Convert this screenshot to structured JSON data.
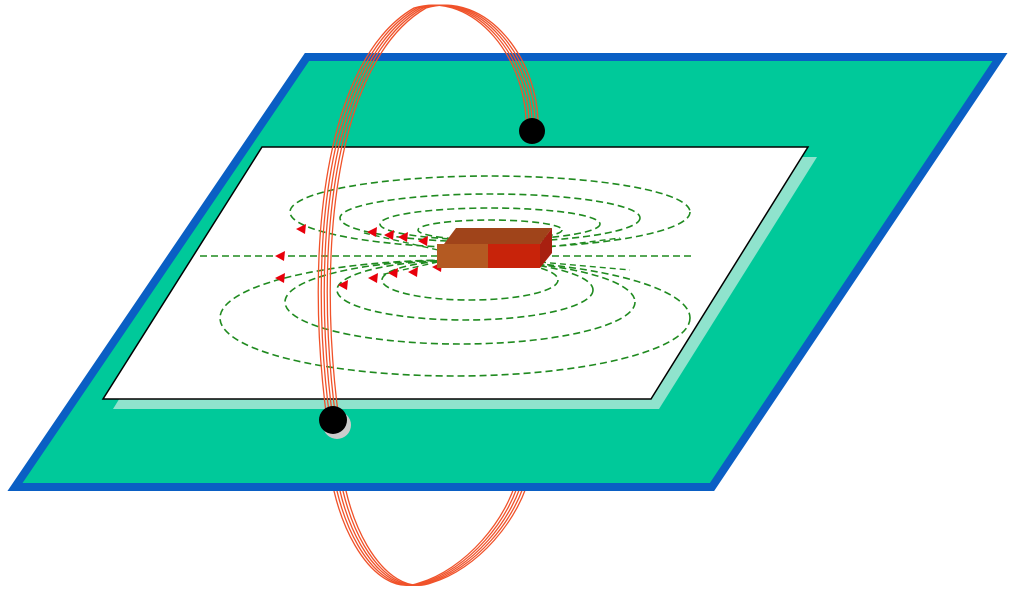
{
  "diagram": {
    "subject": "bar-magnet-field-lines-with-coil-loop",
    "colors": {
      "background": "#ffffff",
      "board_fill": "#00c99a",
      "board_border": "#0a5fc4",
      "paper_fill": "#ffffff",
      "paper_shadow": "#8fe3cd",
      "paper_border": "#000000",
      "field_line": "#1f8a1f",
      "arrow": "#e8000b",
      "coil_wire": "#f0522a",
      "terminal": "#000000",
      "magnet_left_front": "#b45a22",
      "magnet_right_front": "#c8230a",
      "magnet_top": "#a0441a",
      "magnet_side": "#a82010"
    },
    "elements": {
      "magnet": "bar-magnet",
      "field_lines": "dashed-field-lines",
      "arrows": "field-direction-arrows",
      "coil": "wire-loop",
      "terminals": "wire-terminals"
    }
  }
}
